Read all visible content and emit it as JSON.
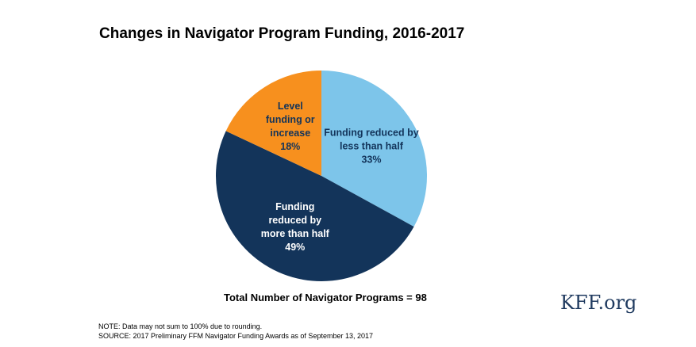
{
  "chart_data": {
    "type": "pie",
    "title": "Changes in Navigator Program Funding, 2016-2017",
    "categories": [
      "Funding reduced by less than half",
      "Funding reduced by more than half",
      "Level funding or increase"
    ],
    "values": [
      33,
      49,
      18
    ],
    "value_labels": [
      "33%",
      "49%",
      "18%"
    ],
    "colors": [
      "#7dc5ea",
      "#13345a",
      "#f7901e"
    ],
    "total": "Total Number of Navigator Programs = 98",
    "note": "NOTE: Data may not sum to 100% due to rounding.",
    "source": "SOURCE: 2017 Preliminary FFM Navigator Funding Awards as of September 13, 2017",
    "brand": "KFF.org"
  }
}
